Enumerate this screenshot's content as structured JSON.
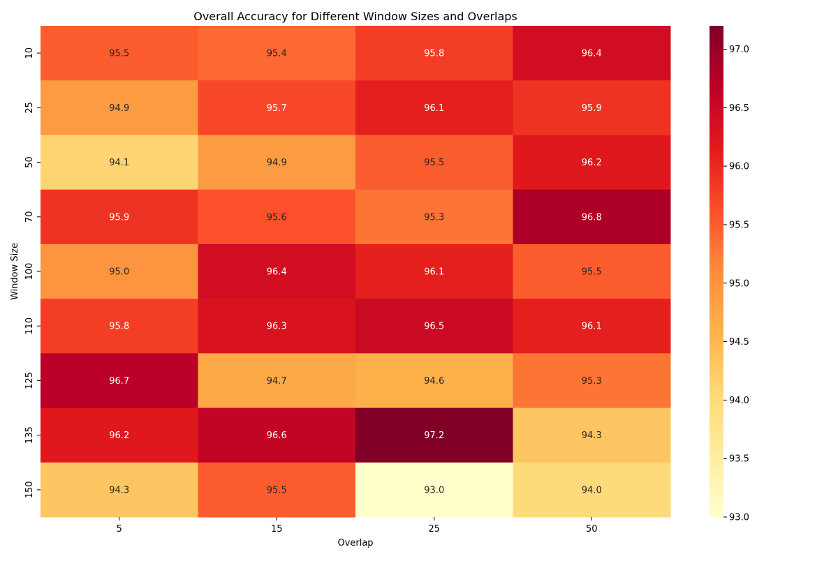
{
  "chart_data": {
    "type": "heatmap",
    "title": "Overall Accuracy for Different Window Sizes and Overlaps",
    "xlabel": "Overlap",
    "ylabel": "Window Size",
    "x_categories": [
      "5",
      "15",
      "25",
      "50"
    ],
    "y_categories": [
      "10",
      "25",
      "50",
      "70",
      "100",
      "110",
      "125",
      "135",
      "150"
    ],
    "values": [
      [
        95.5,
        95.4,
        95.8,
        96.4
      ],
      [
        94.9,
        95.7,
        96.1,
        95.9
      ],
      [
        94.1,
        94.9,
        95.5,
        96.2
      ],
      [
        95.9,
        95.6,
        95.3,
        96.8
      ],
      [
        95.0,
        96.4,
        96.1,
        95.5
      ],
      [
        95.8,
        96.3,
        96.5,
        96.1
      ],
      [
        96.7,
        94.7,
        94.6,
        95.3
      ],
      [
        96.2,
        96.6,
        97.2,
        94.3
      ],
      [
        94.3,
        95.5,
        93.0,
        94.0
      ]
    ],
    "value_labels": [
      [
        "95.5",
        "95.4",
        "95.8",
        "96.4"
      ],
      [
        "94.9",
        "95.7",
        "96.1",
        "95.9"
      ],
      [
        "94.1",
        "94.9",
        "95.5",
        "96.2"
      ],
      [
        "95.9",
        "95.6",
        "95.3",
        "96.8"
      ],
      [
        "95.0",
        "96.4",
        "96.1",
        "95.5"
      ],
      [
        "95.8",
        "96.3",
        "96.5",
        "96.1"
      ],
      [
        "96.7",
        "94.7",
        "94.6",
        "95.3"
      ],
      [
        "96.2",
        "96.6",
        "97.2",
        "94.3"
      ],
      [
        "94.3",
        "95.5",
        "93.0",
        "94.0"
      ]
    ],
    "colormap": "YlOrRd",
    "vmin": 93.0,
    "vmax": 97.2,
    "colorbar_ticks": [
      "93.0",
      "93.5",
      "94.0",
      "94.5",
      "95.0",
      "95.5",
      "96.0",
      "96.5",
      "97.0"
    ],
    "colorbar_tick_values": [
      93.0,
      93.5,
      94.0,
      94.5,
      95.0,
      95.5,
      96.0,
      96.5,
      97.0
    ]
  }
}
